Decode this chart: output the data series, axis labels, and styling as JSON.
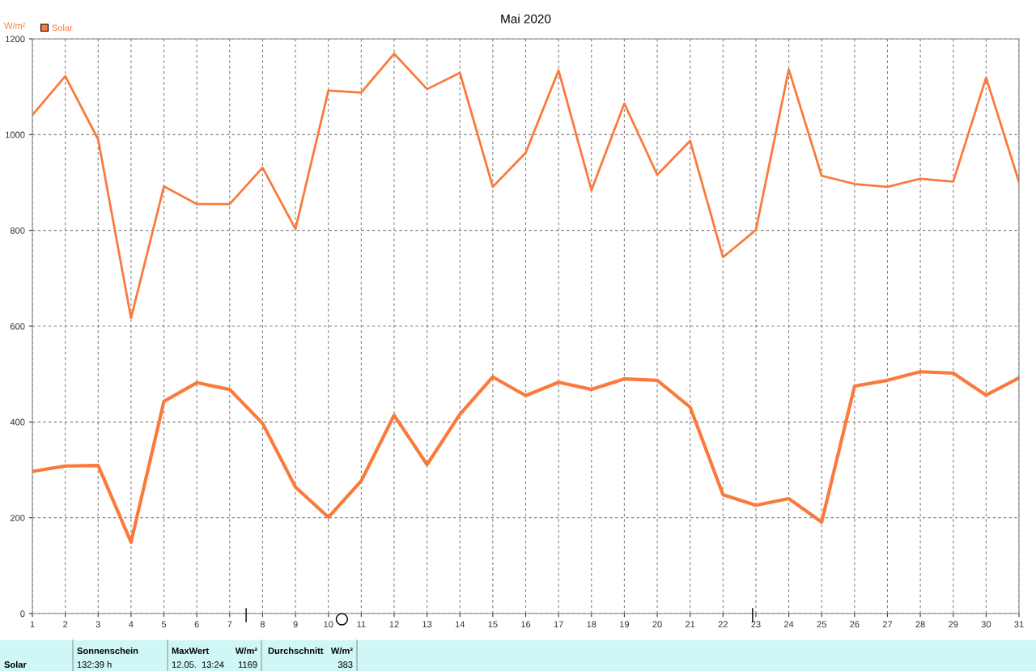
{
  "chart_data": {
    "type": "line",
    "title": "Mai 2020",
    "ylabel": "W/m²",
    "x": [
      1,
      2,
      3,
      4,
      5,
      6,
      7,
      8,
      9,
      10,
      11,
      12,
      13,
      14,
      15,
      16,
      17,
      18,
      19,
      20,
      21,
      22,
      23,
      24,
      25,
      26,
      27,
      28,
      29,
      30,
      31
    ],
    "series": [
      {
        "name": "Solar",
        "color": "#fa7a3c",
        "values": [
          297,
          308,
          309,
          149,
          443,
          482,
          468,
          397,
          264,
          201,
          277,
          414,
          311,
          416,
          494,
          455,
          483,
          468,
          490,
          487,
          431,
          248,
          226,
          240,
          191,
          475,
          487,
          505,
          502,
          456,
          492
        ]
      },
      {
        "color": "#fa7a3c",
        "values": [
          1041,
          1122,
          990,
          617,
          892,
          855,
          855,
          931,
          803,
          1092,
          1088,
          1169,
          1095,
          1129,
          891,
          962,
          1134,
          884,
          1065,
          916,
          987,
          744,
          801,
          1136,
          914,
          897,
          891,
          908,
          902,
          1119,
          901
        ]
      }
    ],
    "xlim": [
      1,
      31
    ],
    "xticks": [
      1,
      2,
      3,
      4,
      5,
      6,
      7,
      8,
      9,
      10,
      11,
      12,
      13,
      14,
      15,
      16,
      17,
      18,
      19,
      20,
      21,
      22,
      23,
      24,
      25,
      26,
      27,
      28,
      29,
      30,
      31
    ],
    "ylim": [
      0,
      1200
    ],
    "yticks": [
      0,
      200,
      400,
      600,
      800,
      1000,
      1200
    ],
    "grid": true,
    "legend": "top left",
    "marker": "none",
    "line_style": "solid",
    "annotations": [
      "Solar",
      "Sonnenschein",
      "132:39 h",
      "MaxWert",
      "W/m²",
      "12.05.  13:24",
      "1169",
      "Durchschnitt",
      "W/m²",
      "383"
    ]
  }
}
